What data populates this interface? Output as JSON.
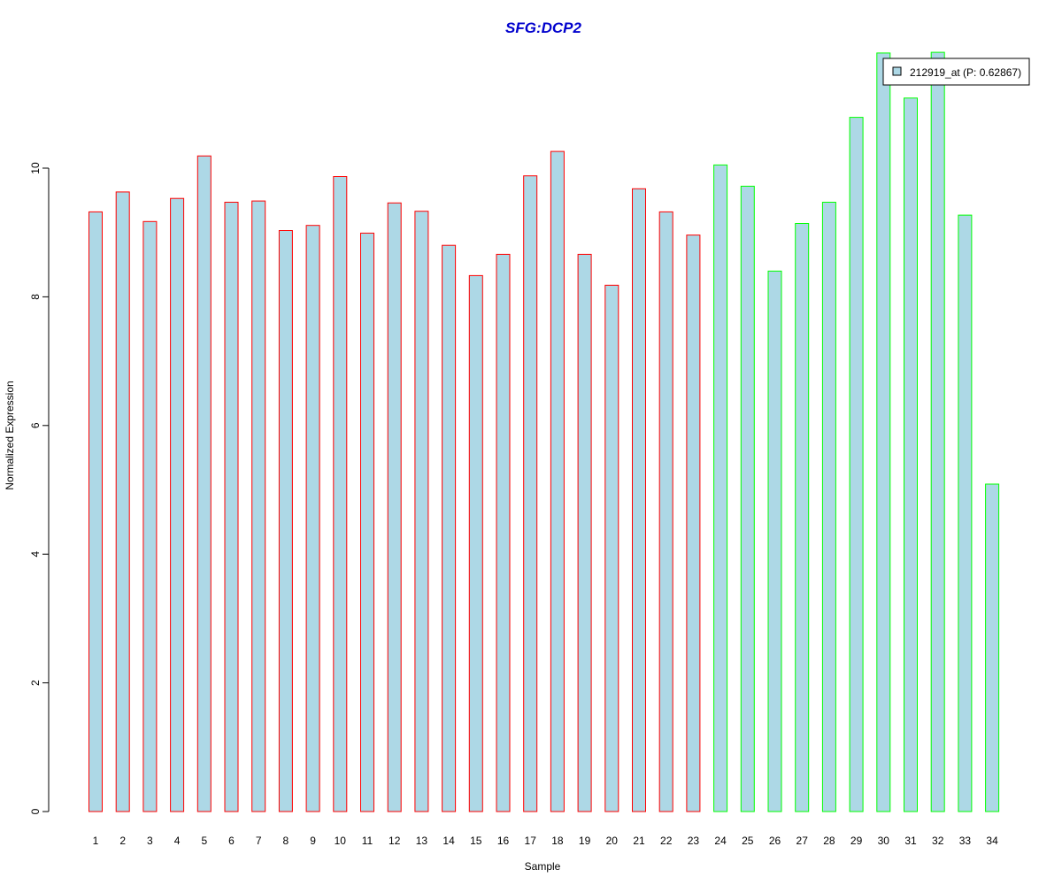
{
  "chart_data": {
    "type": "bar",
    "title": "SFG:DCP2",
    "xlabel": "Sample",
    "ylabel": "Normalized Expression",
    "ylim": [
      0,
      12
    ],
    "yticks": [
      0,
      2,
      4,
      6,
      8,
      10
    ],
    "grid": false,
    "legend_position": "top-right",
    "categories": [
      "1",
      "2",
      "3",
      "4",
      "5",
      "6",
      "7",
      "8",
      "9",
      "10",
      "11",
      "12",
      "13",
      "14",
      "15",
      "16",
      "17",
      "18",
      "19",
      "20",
      "21",
      "22",
      "23",
      "24",
      "25",
      "26",
      "27",
      "28",
      "29",
      "30",
      "31",
      "32",
      "33",
      "34"
    ],
    "series": [
      {
        "name": "212919_at (P: 0.62867)",
        "values": [
          9.32,
          9.63,
          9.17,
          9.53,
          10.19,
          9.47,
          9.49,
          9.03,
          9.11,
          9.87,
          8.99,
          9.46,
          9.33,
          8.8,
          8.33,
          8.66,
          9.88,
          10.26,
          8.66,
          8.18,
          9.68,
          9.32,
          8.96,
          10.05,
          9.72,
          8.4,
          9.14,
          9.47,
          10.79,
          11.79,
          11.09,
          11.8,
          9.27,
          5.09
        ],
        "groups": [
          "red",
          "red",
          "red",
          "red",
          "red",
          "red",
          "red",
          "red",
          "red",
          "red",
          "red",
          "red",
          "red",
          "red",
          "red",
          "red",
          "red",
          "red",
          "red",
          "red",
          "red",
          "red",
          "red",
          "green",
          "green",
          "green",
          "green",
          "green",
          "green",
          "green",
          "green",
          "green",
          "green",
          "green"
        ]
      }
    ],
    "colors": {
      "bar_fill": "#add8e6",
      "group_red": "#ff0000",
      "group_green": "#00ff00",
      "title": "#0000cd"
    }
  }
}
